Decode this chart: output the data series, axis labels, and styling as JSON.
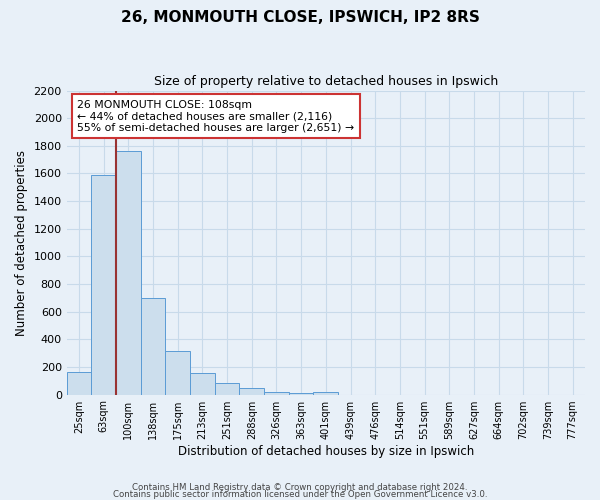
{
  "title": "26, MONMOUTH CLOSE, IPSWICH, IP2 8RS",
  "subtitle": "Size of property relative to detached houses in Ipswich",
  "xlabel": "Distribution of detached houses by size in Ipswich",
  "ylabel": "Number of detached properties",
  "bin_labels": [
    "25sqm",
    "63sqm",
    "100sqm",
    "138sqm",
    "175sqm",
    "213sqm",
    "251sqm",
    "288sqm",
    "326sqm",
    "363sqm",
    "401sqm",
    "439sqm",
    "476sqm",
    "514sqm",
    "551sqm",
    "589sqm",
    "627sqm",
    "664sqm",
    "702sqm",
    "739sqm",
    "777sqm"
  ],
  "bar_values": [
    160,
    1590,
    1760,
    700,
    315,
    155,
    85,
    45,
    20,
    15,
    20,
    0,
    0,
    0,
    0,
    0,
    0,
    0,
    0,
    0,
    0
  ],
  "bar_color": "#ccdeed",
  "bar_edge_color": "#5b9bd5",
  "vline_bin_index": 2,
  "vline_color": "#993333",
  "annotation_text": "26 MONMOUTH CLOSE: 108sqm\n← 44% of detached houses are smaller (2,116)\n55% of semi-detached houses are larger (2,651) →",
  "annotation_box_color": "#ffffff",
  "annotation_box_edge": "#cc3333",
  "ylim": [
    0,
    2200
  ],
  "yticks": [
    0,
    200,
    400,
    600,
    800,
    1000,
    1200,
    1400,
    1600,
    1800,
    2000,
    2200
  ],
  "grid_color": "#c8daea",
  "background_color": "#e8f0f8",
  "footer_line1": "Contains HM Land Registry data © Crown copyright and database right 2024.",
  "footer_line2": "Contains public sector information licensed under the Open Government Licence v3.0."
}
